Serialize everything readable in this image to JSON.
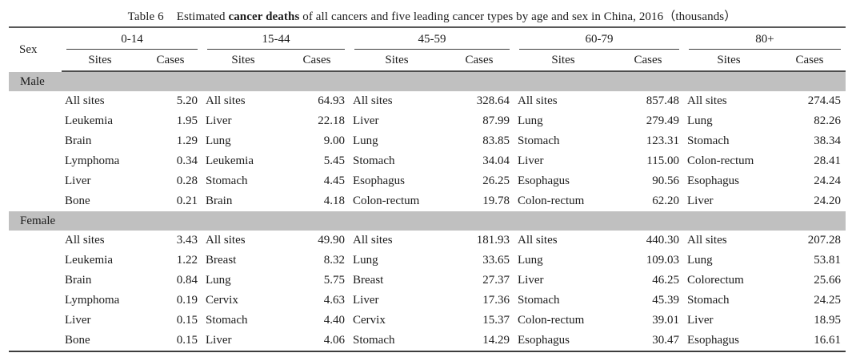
{
  "title": {
    "label": "Table 6",
    "prefix": "Estimated",
    "bold": "cancer deaths",
    "suffix": "of all cancers and five leading cancer types by age and sex in China, 2016（thousands）"
  },
  "table": {
    "sex_header": "Sex",
    "age_groups": [
      "0-14",
      "15-44",
      "45-59",
      "60-79",
      "80+"
    ],
    "sub_headers": {
      "sites": "Sites",
      "cases": "Cases"
    },
    "sections": [
      {
        "sex": "Male",
        "rows": [
          [
            [
              "All sites",
              "5.20"
            ],
            [
              "All sites",
              "64.93"
            ],
            [
              "All sites",
              "328.64"
            ],
            [
              "All sites",
              "857.48"
            ],
            [
              "All sites",
              "274.45"
            ]
          ],
          [
            [
              "Leukemia",
              "1.95"
            ],
            [
              "Liver",
              "22.18"
            ],
            [
              "Liver",
              "87.99"
            ],
            [
              "Lung",
              "279.49"
            ],
            [
              "Lung",
              "82.26"
            ]
          ],
          [
            [
              "Brain",
              "1.29"
            ],
            [
              "Lung",
              "9.00"
            ],
            [
              "Lung",
              "83.85"
            ],
            [
              "Stomach",
              "123.31"
            ],
            [
              "Stomach",
              "38.34"
            ]
          ],
          [
            [
              "Lymphoma",
              "0.34"
            ],
            [
              "Leukemia",
              "5.45"
            ],
            [
              "Stomach",
              "34.04"
            ],
            [
              "Liver",
              "115.00"
            ],
            [
              "Colon-rectum",
              "28.41"
            ]
          ],
          [
            [
              "Liver",
              "0.28"
            ],
            [
              "Stomach",
              "4.45"
            ],
            [
              "Esophagus",
              "26.25"
            ],
            [
              "Esophagus",
              "90.56"
            ],
            [
              "Esophagus",
              "24.24"
            ]
          ],
          [
            [
              "Bone",
              "0.21"
            ],
            [
              "Brain",
              "4.18"
            ],
            [
              "Colon-rectum",
              "19.78"
            ],
            [
              "Colon-rectum",
              "62.20"
            ],
            [
              "Liver",
              "24.20"
            ]
          ]
        ]
      },
      {
        "sex": "Female",
        "rows": [
          [
            [
              "All sites",
              "3.43"
            ],
            [
              "All sites",
              "49.90"
            ],
            [
              "All sites",
              "181.93"
            ],
            [
              "All sites",
              "440.30"
            ],
            [
              "All sites",
              "207.28"
            ]
          ],
          [
            [
              "Leukemia",
              "1.22"
            ],
            [
              "Breast",
              "8.32"
            ],
            [
              "Lung",
              "33.65"
            ],
            [
              "Lung",
              "109.03"
            ],
            [
              "Lung",
              "53.81"
            ]
          ],
          [
            [
              "Brain",
              "0.84"
            ],
            [
              "Lung",
              "5.75"
            ],
            [
              "Breast",
              "27.37"
            ],
            [
              "Liver",
              "46.25"
            ],
            [
              "Colorectum",
              "25.66"
            ]
          ],
          [
            [
              "Lymphoma",
              "0.19"
            ],
            [
              "Cervix",
              "4.63"
            ],
            [
              "Liver",
              "17.36"
            ],
            [
              "Stomach",
              "45.39"
            ],
            [
              "Stomach",
              "24.25"
            ]
          ],
          [
            [
              "Liver",
              "0.15"
            ],
            [
              "Stomach",
              "4.40"
            ],
            [
              "Cervix",
              "15.37"
            ],
            [
              "Colon-rectum",
              "39.01"
            ],
            [
              "Liver",
              "18.95"
            ]
          ],
          [
            [
              "Bone",
              "0.15"
            ],
            [
              "Liver",
              "4.06"
            ],
            [
              "Stomach",
              "14.29"
            ],
            [
              "Esophagus",
              "30.47"
            ],
            [
              "Esophagus",
              "16.61"
            ]
          ]
        ]
      }
    ]
  },
  "colors": {
    "band_gray": "#c0c0c0",
    "rule_dark": "#4d4d4d",
    "text": "#1c1c1c"
  }
}
